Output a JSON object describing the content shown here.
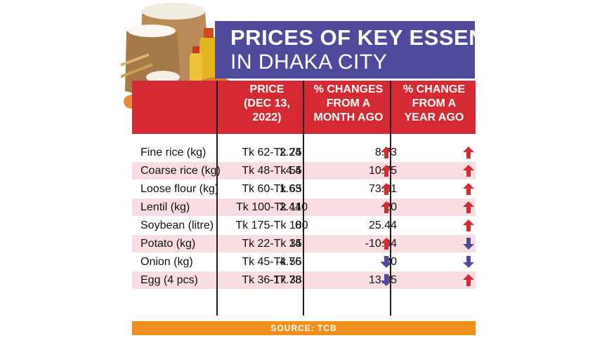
{
  "title": {
    "line1": "PRICES OF KEY ESSENTIALS",
    "line2": "IN DHAKA CITY"
  },
  "columns": {
    "price": "PRICE\n(DEC 13,\n2022)",
    "month": "% CHANGES\nFROM A\nMONTH AGO",
    "year": "% CHANGE\nFROM A\nYEAR AGO"
  },
  "rows": [
    {
      "item": "Fine rice (kg)",
      "price": "Tk 62-Tk 75",
      "month": "2.24",
      "month_dir": "up",
      "year": "8.73",
      "year_dir": "up"
    },
    {
      "item": "Coarse rice (kg)",
      "price": "Tk 48-Tk 55",
      "month": "4.4",
      "month_dir": "up",
      "year": "10.75",
      "year_dir": "up"
    },
    {
      "item": "Loose flour (kg)",
      "price": "Tk 60-Tk 65",
      "month": "1.63",
      "month_dir": "up",
      "year": "73.61",
      "year_dir": "up"
    },
    {
      "item": "Lentil (kg)",
      "price": "Tk 100-Tk 110",
      "month": "2.44",
      "month_dir": "up",
      "year": "20",
      "year_dir": "up"
    },
    {
      "item": "Soybean (litre)",
      "price": "Tk 175-Tk 180",
      "month": "0",
      "month_dir": "none",
      "year": "25.44",
      "year_dir": "up"
    },
    {
      "item": "Potato (kg)",
      "price": "Tk 22-Tk 35",
      "month": "14",
      "month_dir": "up",
      "year": "-10.94",
      "year_dir": "down"
    },
    {
      "item": "Onion (kg)",
      "price": "Tk 45-Tk 55",
      "month": "-4.76",
      "month_dir": "down",
      "year": "-20",
      "year_dir": "down"
    },
    {
      "item": "Egg (4 pcs)",
      "price": "Tk 36-Tk 38",
      "month": "-17.78",
      "month_dir": "down",
      "year": "13.85",
      "year_dir": "up"
    }
  ],
  "source": "SOURCE: TCB",
  "colors": {
    "title_band": "#4f4a9c",
    "header_band": "#d42a33",
    "row_alt": "#f8dde1",
    "source_bar": "#f0901e",
    "arrow_up": "#d42a33",
    "arrow_down": "#4f4a9c"
  },
  "icons": [
    "groceries-illustration-icon",
    "up-arrow-icon",
    "down-arrow-icon"
  ]
}
